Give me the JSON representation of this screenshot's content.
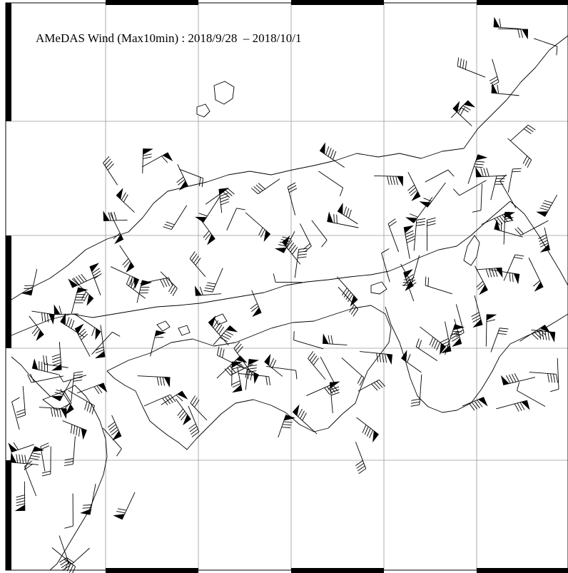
{
  "title": "AMeDAS Wind (Max10min) : 2018/9/28  – 2018/10/1",
  "colors": {
    "background": "#ffffff",
    "ink": "#000000",
    "grid": "#9a9a9a"
  },
  "frame_style": "alternating black/white lat-lon border ticks",
  "symbol": "wind-barb"
}
